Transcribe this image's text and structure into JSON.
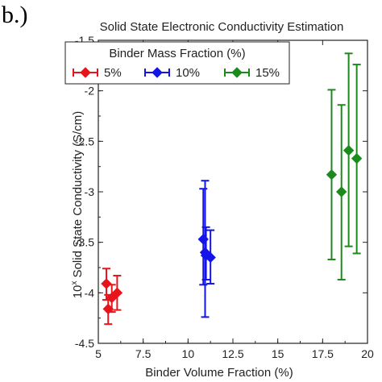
{
  "panel_label": "b.)",
  "chart_data": {
    "type": "scatter",
    "title": "Solid State Electronic Conductivity Estimation",
    "xlabel": "Binder Volume Fraction (%)",
    "ylabel_base": "10",
    "ylabel_exp": "x",
    "ylabel_rest": " Solid State Conductivity (S/cm)",
    "xlim": [
      5,
      20
    ],
    "ylim": [
      -4.5,
      -1.5
    ],
    "xticks": [
      5,
      7.5,
      10,
      12.5,
      15,
      17.5,
      20
    ],
    "xtick_labels": [
      "5",
      "7.5",
      "10",
      "12.5",
      "15",
      "17.5",
      "20"
    ],
    "yticks": [
      -4.5,
      -4,
      -3.5,
      -3,
      -2.5,
      -2,
      -1.5
    ],
    "ytick_labels": [
      "-4.5",
      "-4",
      "-3.5",
      "-3",
      "-2.5",
      "-2",
      "-1.5"
    ],
    "grid": false,
    "legend_title": "Binder Mass Fraction (%)",
    "legend_placement": "top-left",
    "series": [
      {
        "name": "5%",
        "color": "#e8141b",
        "points": [
          {
            "x": 5.45,
            "y": -3.91,
            "ylow": -4.07,
            "yhigh": -3.76
          },
          {
            "x": 5.55,
            "y": -4.16,
            "ylow": -4.31,
            "yhigh": -4.02
          },
          {
            "x": 5.75,
            "y": -4.05,
            "ylow": -4.19,
            "yhigh": -3.92
          },
          {
            "x": 6.05,
            "y": -4.0,
            "ylow": -4.17,
            "yhigh": -3.83
          }
        ]
      },
      {
        "name": "10%",
        "color": "#1414e8",
        "points": [
          {
            "x": 10.85,
            "y": -3.47,
            "ylow": -3.92,
            "yhigh": -2.97
          },
          {
            "x": 10.95,
            "y": -3.6,
            "ylow": -4.24,
            "yhigh": -2.89
          },
          {
            "x": 11.0,
            "y": -3.63,
            "ylow": -3.87,
            "yhigh": -3.35
          },
          {
            "x": 11.25,
            "y": -3.65,
            "ylow": -3.91,
            "yhigh": -3.38
          }
        ]
      },
      {
        "name": "15%",
        "color": "#1d8a1d",
        "points": [
          {
            "x": 18.0,
            "y": -2.83,
            "ylow": -3.67,
            "yhigh": -1.99
          },
          {
            "x": 18.55,
            "y": -3.0,
            "ylow": -3.87,
            "yhigh": -2.14
          },
          {
            "x": 18.95,
            "y": -2.59,
            "ylow": -3.54,
            "yhigh": -1.63
          },
          {
            "x": 19.4,
            "y": -2.67,
            "ylow": -3.61,
            "yhigh": -1.74
          }
        ]
      }
    ]
  }
}
